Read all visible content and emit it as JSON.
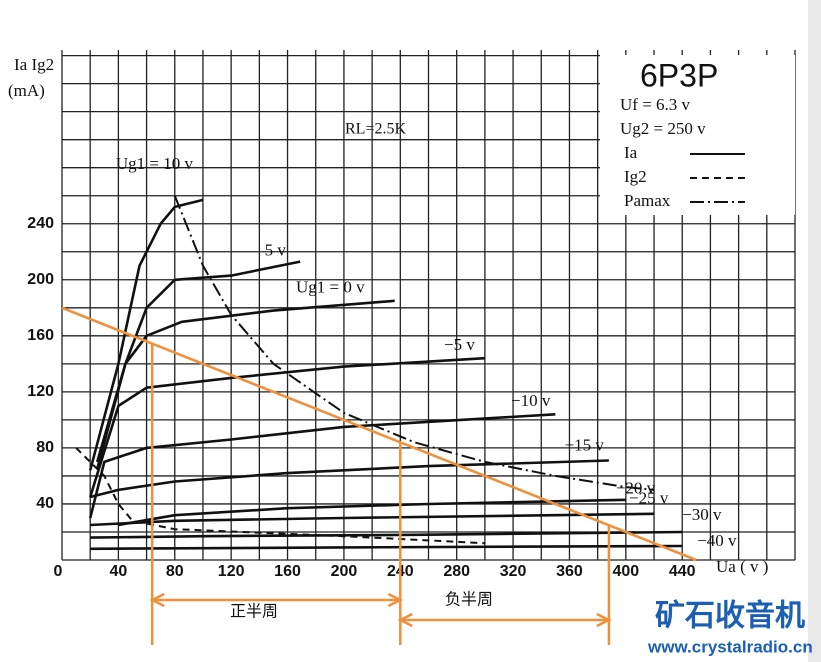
{
  "chart_data": {
    "type": "line",
    "title": "6P3P",
    "annotation": "RL=2.5K",
    "y_label": "Ia Ig2",
    "y_unit": "(mA)",
    "x_label": "Ua ( v )",
    "legend_lines": [
      "Uf = 6.3 v",
      "Ug2 = 250 v"
    ],
    "legend": [
      {
        "name": "Ia",
        "dash": "solid"
      },
      {
        "name": "Ig2",
        "dash": "dashed"
      },
      {
        "name": "Pamax",
        "dash": "dashdot"
      }
    ],
    "xlim": [
      0,
      520
    ],
    "ylim": [
      0,
      364
    ],
    "xticks": [
      0,
      40,
      80,
      120,
      160,
      200,
      240,
      280,
      320,
      360,
      400,
      440
    ],
    "yticks": [
      40,
      80,
      120,
      160,
      200,
      240
    ],
    "xgrid": [
      0,
      20,
      40,
      60,
      80,
      100,
      120,
      140,
      160,
      180,
      200,
      220,
      240,
      260,
      280,
      300,
      320,
      340,
      360,
      380,
      400,
      420,
      440,
      460,
      480,
      500,
      520
    ],
    "ygrid": [
      0,
      20,
      40,
      60,
      80,
      100,
      120,
      140,
      160,
      180,
      200,
      220,
      240,
      260,
      280,
      300,
      320,
      340,
      360
    ],
    "grid": true,
    "series": [
      {
        "name": "Ug1 = 10 v",
        "color": "#111111",
        "dash": "solid",
        "x": [
          20,
          40,
          55,
          70,
          80,
          100
        ],
        "values": [
          64,
          140,
          210,
          240,
          252,
          257
        ]
      },
      {
        "name": "5 v",
        "color": "#111111",
        "dash": "solid",
        "x": [
          25,
          45,
          60,
          80,
          120,
          169
        ],
        "values": [
          70,
          140,
          180,
          200,
          203,
          213
        ]
      },
      {
        "name": "Ug1 = 0 v",
        "color": "#111111",
        "dash": "solid",
        "x": [
          25,
          45,
          60,
          85,
          150,
          236
        ],
        "values": [
          65,
          140,
          160,
          170,
          178,
          185
        ]
      },
      {
        "name": "−5 v",
        "color": "#111111",
        "dash": "solid",
        "x": [
          20,
          40,
          60,
          120,
          200,
          300
        ],
        "values": [
          45,
          110,
          123,
          130,
          138,
          144
        ]
      },
      {
        "name": "−10 v",
        "color": "#111111",
        "dash": "solid",
        "x": [
          20,
          30,
          60,
          120,
          200,
          350
        ],
        "values": [
          30,
          70,
          80,
          86,
          95,
          104
        ]
      },
      {
        "name": "−15 v",
        "color": "#111111",
        "dash": "solid",
        "x": [
          20,
          40,
          80,
          160,
          260,
          388
        ],
        "values": [
          45,
          50,
          56,
          62,
          67,
          71
        ]
      },
      {
        "name": "−20 v",
        "color": "#111111",
        "dash": "solid",
        "x": [
          40,
          80,
          160,
          260,
          400
        ],
        "values": [
          25,
          32,
          37,
          40,
          43
        ]
      },
      {
        "name": "−25 v",
        "color": "#111111",
        "dash": "solid",
        "x": [
          20,
          80,
          200,
          420
        ],
        "values": [
          25,
          28,
          30,
          33
        ]
      },
      {
        "name": "−30 v",
        "color": "#111111",
        "dash": "solid",
        "x": [
          20,
          100,
          250,
          440
        ],
        "values": [
          16,
          17,
          18,
          20
        ]
      },
      {
        "name": "−40 v",
        "color": "#111111",
        "dash": "solid",
        "x": [
          20,
          200,
          440
        ],
        "values": [
          8,
          9,
          10
        ]
      },
      {
        "name": "Ig2",
        "color": "#111111",
        "dash": "dashed",
        "x": [
          10,
          30,
          40,
          50,
          80,
          200,
          300
        ],
        "values": [
          80,
          60,
          40,
          28,
          22,
          17,
          12
        ]
      },
      {
        "name": "Pamax",
        "color": "#111111",
        "dash": "dashdot",
        "x": [
          80,
          100,
          120,
          150,
          200,
          250,
          300,
          350,
          400,
          420
        ],
        "values": [
          260,
          210,
          175,
          140,
          105,
          84,
          70,
          60,
          52,
          50
        ]
      },
      {
        "name": "RL",
        "color": "#f0903a",
        "dash": "solid",
        "x": [
          0,
          450
        ],
        "values": [
          180,
          0
        ]
      }
    ],
    "operating_points": {
      "color": "#f0903a",
      "x": [
        64,
        240,
        388
      ],
      "values": [
        155,
        84,
        25
      ]
    },
    "spans": [
      "正半周",
      "负半周"
    ]
  },
  "watermark": {
    "name": "矿石收音机",
    "url": "www.crystalradio.cn"
  }
}
